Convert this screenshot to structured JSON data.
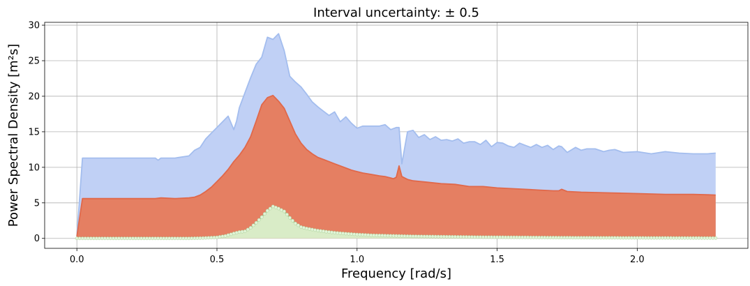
{
  "chart_data": {
    "type": "area",
    "title": "Interval uncertainty: ± 0.5",
    "xlabel": "Frequency [rad/s]",
    "ylabel": "Power Spectral Density [m²s]",
    "xlim": [
      -0.115,
      2.395
    ],
    "ylim": [
      -1.4,
      30.4
    ],
    "xticks": [
      0.0,
      0.5,
      1.0,
      1.5,
      2.0
    ],
    "xtick_labels": [
      "0.0",
      "0.5",
      "1.0",
      "1.5",
      "2.0"
    ],
    "yticks": [
      0,
      5,
      10,
      15,
      20,
      25,
      30
    ],
    "ytick_labels": [
      "0",
      "5",
      "10",
      "15",
      "20",
      "25",
      "30"
    ],
    "grid": true,
    "colors": {
      "upper_fill": "#c0d0f5",
      "upper_line": "#a3bdee",
      "middle_fill": "#e57f62",
      "middle_line": "#e0684a",
      "lower_fill": "#d9ecc7",
      "lower_line": "#a9cf96",
      "lower_marker": "#e2f4d8"
    },
    "series": [
      {
        "role": "upper bound",
        "x": [
          0.0,
          0.02,
          0.05,
          0.1,
          0.15,
          0.2,
          0.25,
          0.28,
          0.29,
          0.3,
          0.35,
          0.4,
          0.42,
          0.44,
          0.46,
          0.48,
          0.5,
          0.52,
          0.54,
          0.56,
          0.57,
          0.58,
          0.6,
          0.62,
          0.64,
          0.66,
          0.68,
          0.7,
          0.72,
          0.74,
          0.76,
          0.78,
          0.8,
          0.82,
          0.84,
          0.86,
          0.88,
          0.9,
          0.92,
          0.94,
          0.96,
          0.98,
          1.0,
          1.02,
          1.05,
          1.08,
          1.1,
          1.12,
          1.14,
          1.15,
          1.16,
          1.18,
          1.2,
          1.22,
          1.24,
          1.26,
          1.28,
          1.3,
          1.32,
          1.34,
          1.36,
          1.38,
          1.4,
          1.42,
          1.44,
          1.46,
          1.48,
          1.5,
          1.52,
          1.54,
          1.56,
          1.58,
          1.6,
          1.62,
          1.64,
          1.66,
          1.68,
          1.7,
          1.72,
          1.73,
          1.75,
          1.78,
          1.8,
          1.82,
          1.85,
          1.88,
          1.9,
          1.92,
          1.95,
          2.0,
          2.05,
          2.1,
          2.15,
          2.2,
          2.25,
          2.28
        ],
        "values": [
          0.3,
          11.3,
          11.3,
          11.3,
          11.3,
          11.3,
          11.3,
          11.3,
          11.0,
          11.3,
          11.3,
          11.6,
          12.4,
          12.8,
          14.0,
          14.8,
          15.6,
          16.4,
          17.2,
          15.3,
          16.5,
          18.4,
          20.5,
          22.6,
          24.5,
          25.5,
          28.3,
          28.0,
          28.8,
          26.4,
          22.8,
          22.0,
          21.3,
          20.3,
          19.2,
          18.5,
          17.9,
          17.3,
          17.8,
          16.4,
          17.1,
          16.2,
          15.5,
          15.8,
          15.8,
          15.8,
          16.0,
          15.3,
          15.6,
          15.6,
          10.5,
          15.0,
          15.2,
          14.2,
          14.6,
          13.9,
          14.3,
          13.8,
          13.9,
          13.7,
          14.0,
          13.4,
          13.6,
          13.6,
          13.2,
          13.8,
          12.9,
          13.5,
          13.4,
          13.0,
          12.8,
          13.4,
          13.1,
          12.8,
          13.2,
          12.8,
          13.1,
          12.5,
          13.0,
          12.9,
          12.1,
          12.8,
          12.4,
          12.6,
          12.6,
          12.2,
          12.4,
          12.5,
          12.1,
          12.2,
          11.9,
          12.2,
          12.0,
          11.9,
          11.9,
          12.0
        ]
      },
      {
        "role": "nominal",
        "x": [
          0.0,
          0.02,
          0.1,
          0.2,
          0.25,
          0.28,
          0.3,
          0.35,
          0.4,
          0.42,
          0.44,
          0.46,
          0.48,
          0.5,
          0.52,
          0.54,
          0.56,
          0.58,
          0.6,
          0.62,
          0.64,
          0.66,
          0.68,
          0.7,
          0.72,
          0.74,
          0.76,
          0.78,
          0.8,
          0.82,
          0.84,
          0.86,
          0.88,
          0.9,
          0.92,
          0.94,
          0.96,
          0.98,
          1.0,
          1.02,
          1.05,
          1.08,
          1.1,
          1.12,
          1.13,
          1.14,
          1.15,
          1.16,
          1.18,
          1.2,
          1.25,
          1.3,
          1.35,
          1.4,
          1.45,
          1.5,
          1.55,
          1.6,
          1.65,
          1.7,
          1.72,
          1.73,
          1.75,
          1.8,
          1.9,
          2.0,
          2.1,
          2.2,
          2.28
        ],
        "values": [
          0.3,
          5.6,
          5.6,
          5.6,
          5.6,
          5.6,
          5.7,
          5.6,
          5.7,
          5.8,
          6.1,
          6.6,
          7.2,
          8.0,
          8.8,
          9.7,
          10.8,
          11.7,
          12.8,
          14.3,
          16.5,
          18.8,
          19.8,
          20.1,
          19.3,
          18.3,
          16.5,
          14.7,
          13.4,
          12.5,
          11.9,
          11.4,
          11.1,
          10.8,
          10.5,
          10.2,
          9.9,
          9.6,
          9.4,
          9.2,
          9.0,
          8.8,
          8.7,
          8.5,
          8.4,
          8.6,
          10.2,
          8.7,
          8.3,
          8.1,
          7.9,
          7.7,
          7.6,
          7.3,
          7.3,
          7.1,
          7.0,
          6.9,
          6.8,
          6.7,
          6.7,
          6.9,
          6.6,
          6.5,
          6.4,
          6.3,
          6.2,
          6.2,
          6.1
        ]
      },
      {
        "role": "lower bound",
        "x": [
          0.0,
          0.1,
          0.2,
          0.3,
          0.4,
          0.45,
          0.5,
          0.53,
          0.56,
          0.58,
          0.6,
          0.62,
          0.64,
          0.66,
          0.68,
          0.7,
          0.72,
          0.74,
          0.76,
          0.78,
          0.8,
          0.82,
          0.84,
          0.86,
          0.88,
          0.9,
          0.92,
          0.95,
          1.0,
          1.05,
          1.1,
          1.15,
          1.2,
          1.3,
          1.4,
          1.5,
          1.6,
          1.7,
          1.8,
          1.9,
          2.0,
          2.1,
          2.2,
          2.28
        ],
        "values": [
          0.0,
          0.0,
          0.0,
          0.0,
          0.0,
          0.05,
          0.15,
          0.35,
          0.7,
          0.9,
          1.0,
          1.5,
          2.2,
          3.0,
          3.9,
          4.5,
          4.2,
          3.8,
          2.9,
          2.1,
          1.6,
          1.4,
          1.25,
          1.1,
          1.0,
          0.9,
          0.8,
          0.7,
          0.55,
          0.45,
          0.4,
          0.35,
          0.3,
          0.25,
          0.2,
          0.17,
          0.15,
          0.12,
          0.1,
          0.09,
          0.08,
          0.07,
          0.06,
          0.05
        ]
      }
    ]
  }
}
